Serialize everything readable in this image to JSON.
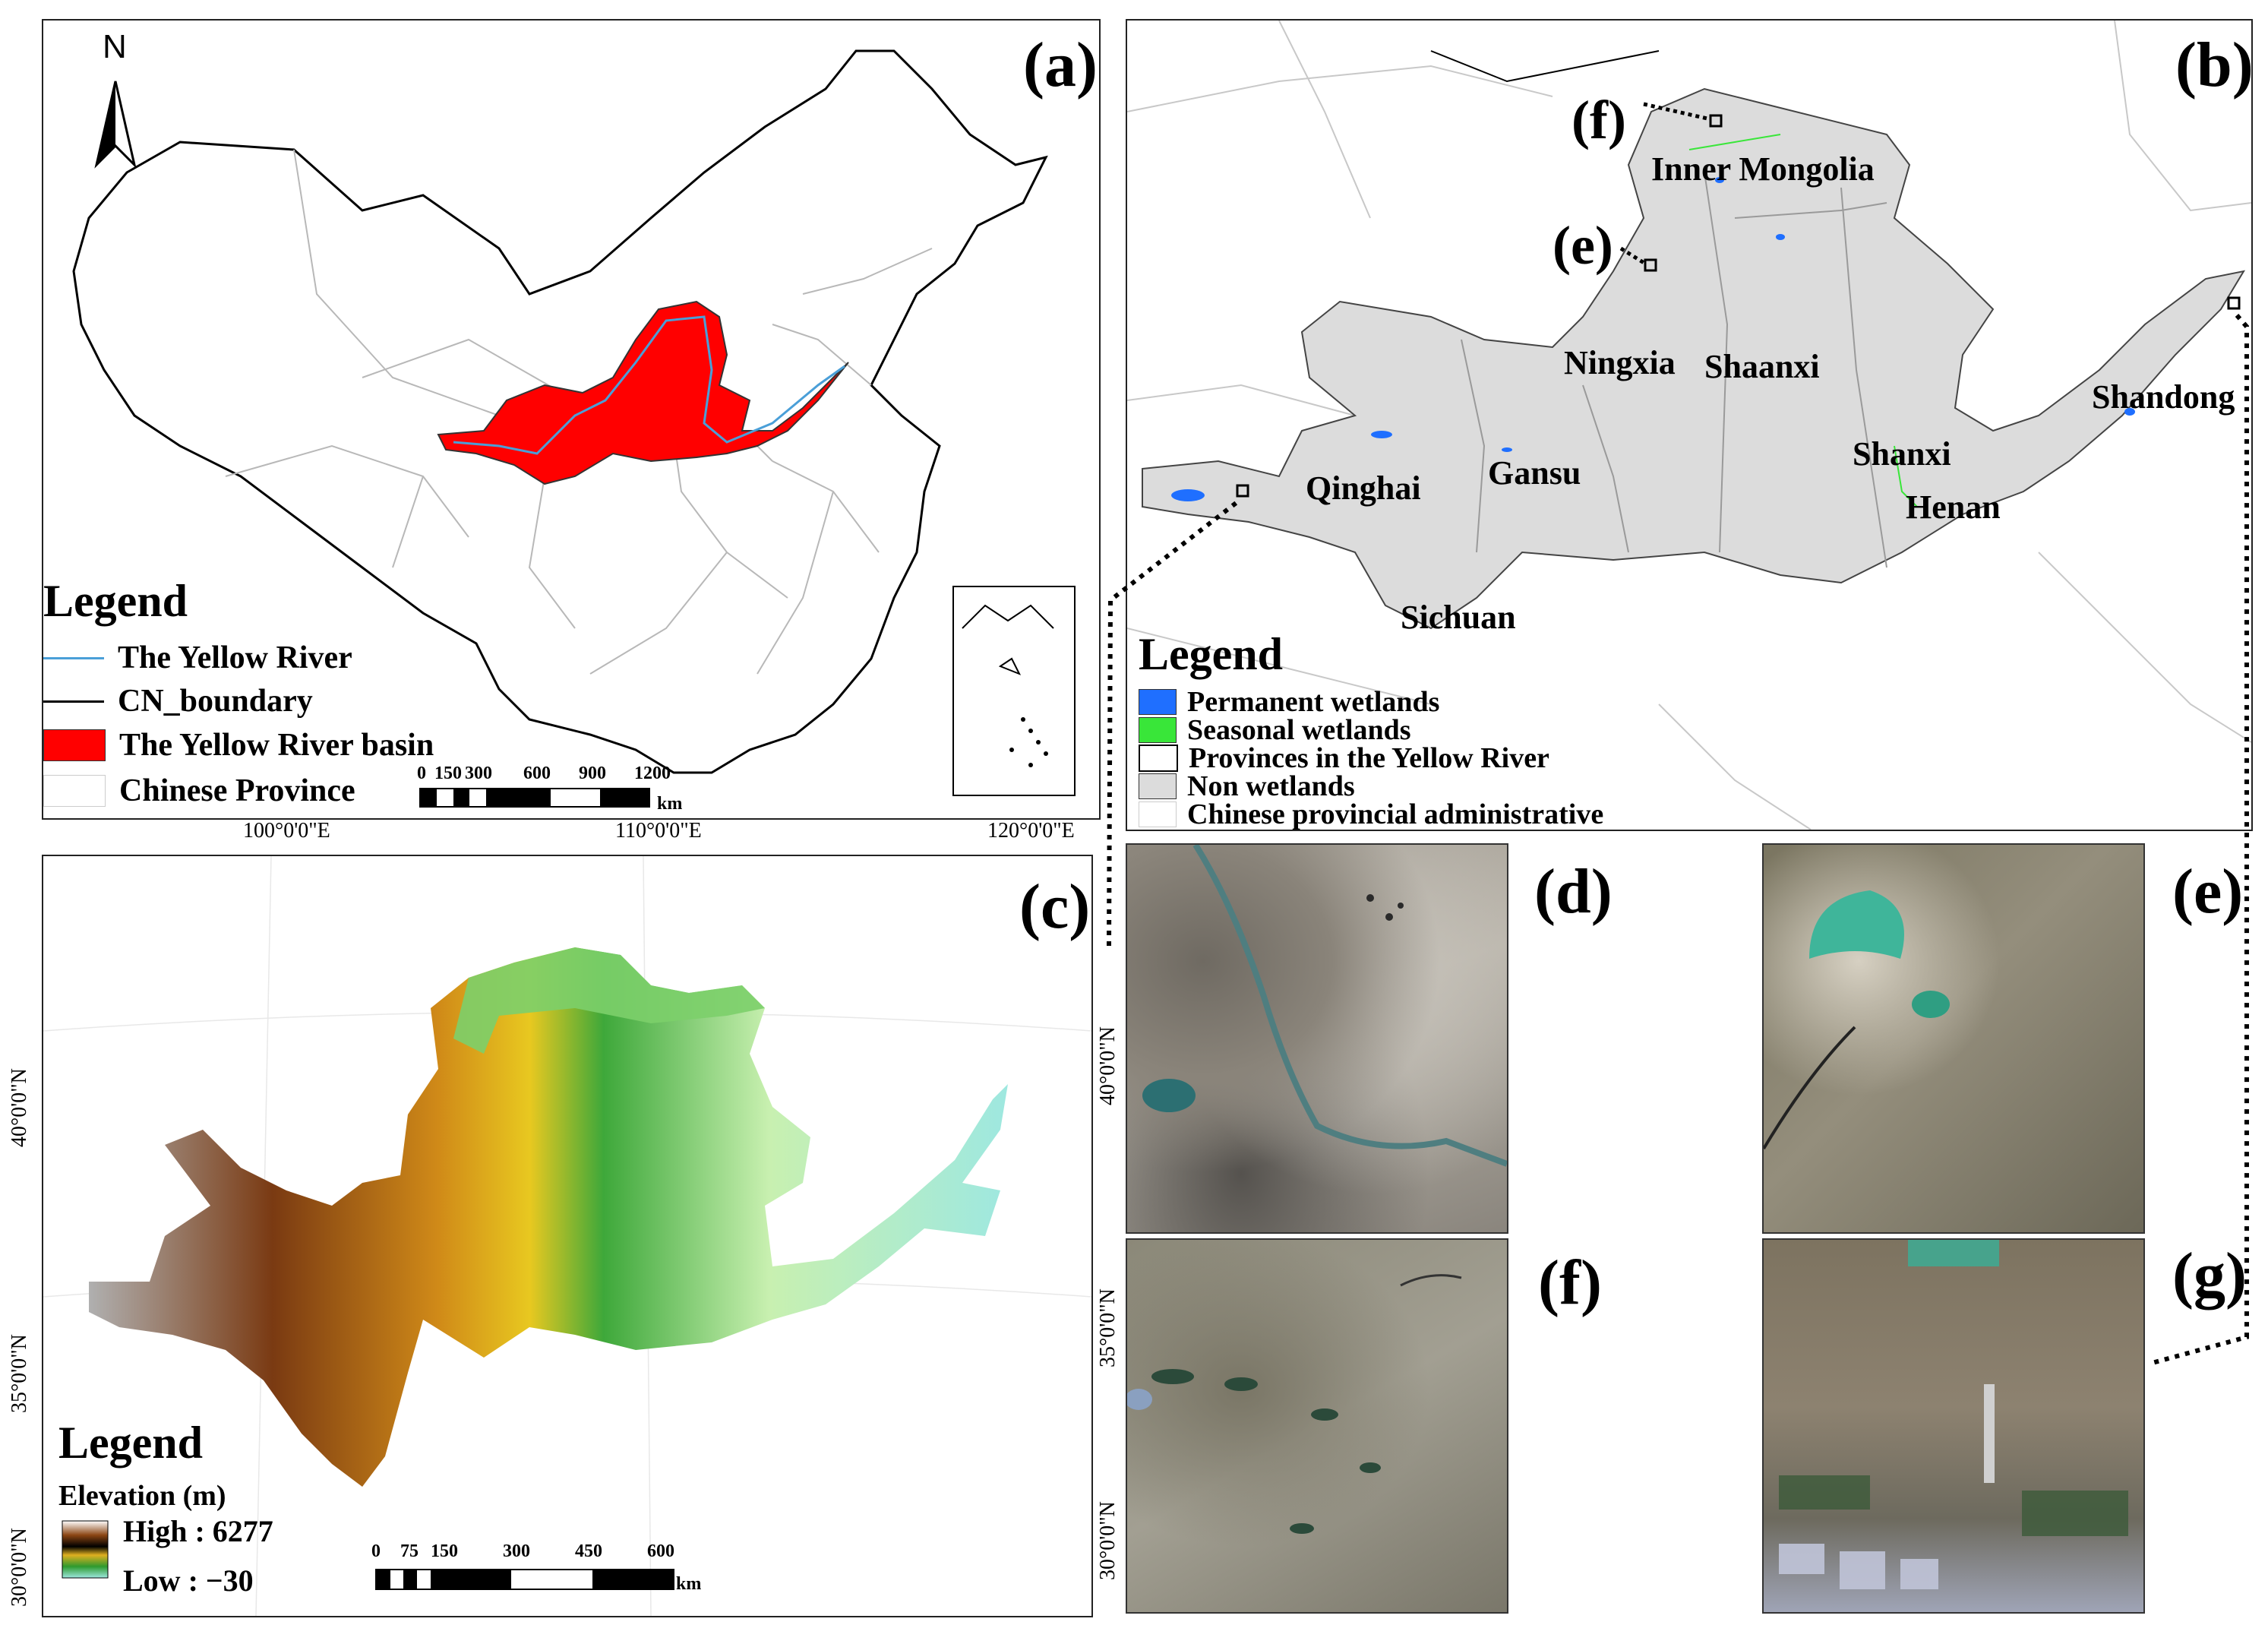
{
  "panels": {
    "a": {
      "label": "(a)",
      "north": "N",
      "legend": {
        "title": "Legend",
        "items": [
          "The Yellow River",
          "CN_boundary",
          "The Yellow River basin",
          "Chinese Province"
        ]
      },
      "scale_ticks": [
        "0",
        "150",
        "300",
        "600",
        "900",
        "1200"
      ],
      "scale_unit": "km"
    },
    "b": {
      "label": "(b)",
      "markers": [
        "(f)",
        "(e)"
      ],
      "provinces": [
        "Inner Mongolia",
        "Ningxia",
        "Shaanxi",
        "Shanxi",
        "Gansu",
        "Qinghai",
        "Henan",
        "Shandong",
        "Sichuan"
      ],
      "legend": {
        "title": "Legend",
        "items": [
          "Permanent wetlands",
          "Seasonal wetlands",
          "Provinces in the Yellow River",
          "Non wetlands",
          "Chinese provincial administrative"
        ]
      }
    },
    "c": {
      "label": "(c)",
      "lon_labels": [
        "100°0'0\"E",
        "110°0'0\"E",
        "120°0'0\"E"
      ],
      "lat_labels": [
        "40°0'0\"N",
        "35°0'0\"N",
        "30°0'0\"N"
      ],
      "legend": {
        "title": "Legend",
        "elevation_title": "Elevation (m)",
        "high": "High : 6277",
        "low": "Low : −30"
      },
      "scale_ticks": [
        "0",
        "75",
        "150",
        "300",
        "450",
        "600"
      ],
      "scale_unit": "km"
    },
    "d": {
      "label": "(d)"
    },
    "e": {
      "label": "(e)"
    },
    "f": {
      "label": "(f)"
    },
    "g": {
      "label": "(g)"
    }
  },
  "colors": {
    "basin_red": "#ff0000",
    "river_blue": "#4a9fd8",
    "permanent_wetland": "#1f6fff",
    "seasonal_wetland": "#39e639",
    "non_wetland": "#dcdcdc"
  }
}
